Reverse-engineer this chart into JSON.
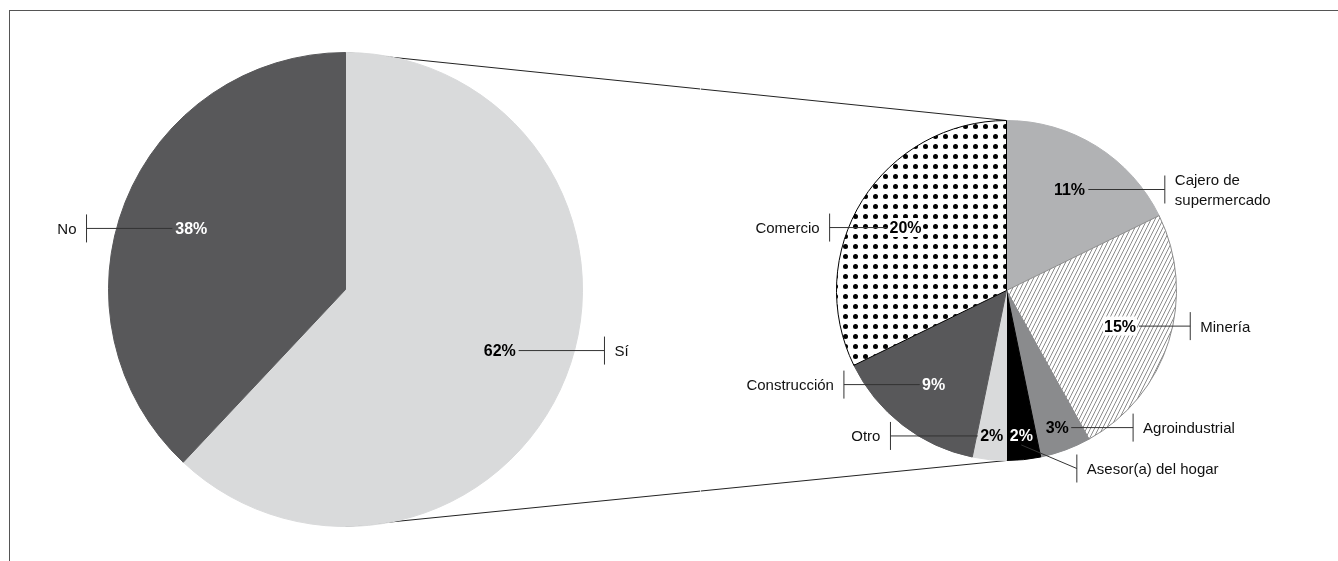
{
  "chart_data": [
    {
      "type": "pie",
      "categories": [
        "Sí",
        "No"
      ],
      "values": [
        62,
        38
      ],
      "colors": [
        "#d9dadb",
        "#58585a"
      ],
      "value_labels": [
        "62%",
        "38%"
      ]
    },
    {
      "type": "pie",
      "categories": [
        "Cajero de supermercado",
        "Minería",
        "Agroindustrial",
        "Asesor(a) del hogar",
        "Otro",
        "Construcción",
        "Comercio"
      ],
      "values": [
        11,
        15,
        3,
        2,
        2,
        9,
        20
      ],
      "colors": [
        "#b1b2b4",
        "#ffffff",
        "#8a8b8d",
        "#000000",
        "#d9dadb",
        "#58585a",
        "#ffffff"
      ],
      "value_labels": [
        "11%",
        "15%",
        "3%",
        "2%",
        "2%",
        "9%",
        "20%"
      ]
    }
  ]
}
